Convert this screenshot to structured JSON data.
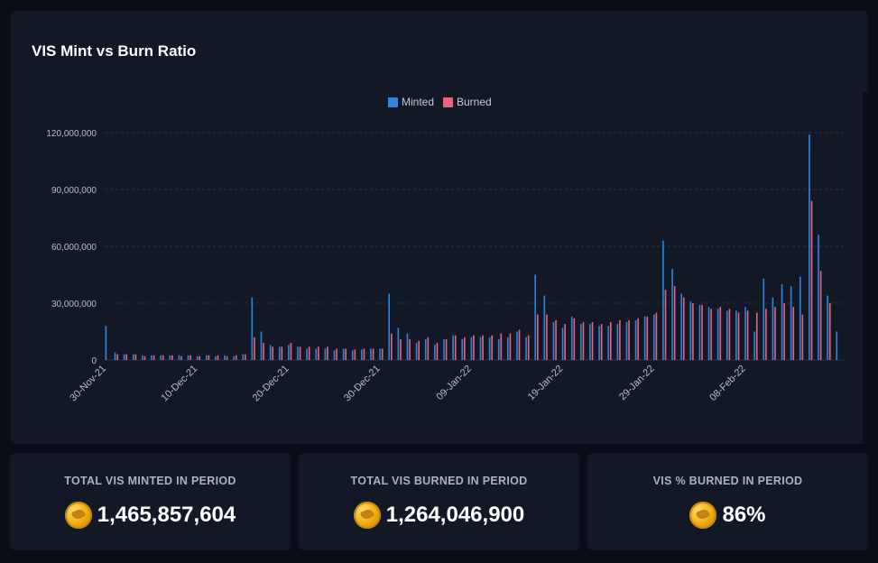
{
  "chart_card": {
    "title": "VIS Mint vs Burn Ratio"
  },
  "stats": [
    {
      "label": "TOTAL VIS MINTED IN PERIOD",
      "value": "1,465,857,604",
      "icon": "vis-coin-icon"
    },
    {
      "label": "TOTAL VIS BURNED IN PERIOD",
      "value": "1,264,046,900",
      "icon": "vis-coin-icon"
    },
    {
      "label": "VIS % BURNED IN PERIOD",
      "value": "86%",
      "icon": "vis-coin-icon"
    }
  ],
  "colors": {
    "minted": "#2e86de",
    "burned": "#f0637c",
    "grid": "#2a3142"
  },
  "chart_data": {
    "type": "bar",
    "title": "VIS Mint vs Burn Ratio",
    "legend": {
      "position": "top-center",
      "entries": [
        "Minted",
        "Burned"
      ]
    },
    "grid": "horizontal-dashed",
    "ylim": [
      0,
      120000000
    ],
    "yticks": [
      {
        "value": 0,
        "label": "0"
      },
      {
        "value": 30000000,
        "label": "30,000,000"
      },
      {
        "value": 60000000,
        "label": "60,000,000"
      },
      {
        "value": 90000000,
        "label": "90,000,000"
      },
      {
        "value": 120000000,
        "label": "120,000,000"
      }
    ],
    "x_tick_labels": [
      {
        "date": "2021-11-30",
        "label": "30-Nov-21"
      },
      {
        "date": "2021-12-10",
        "label": "10-Dec-21"
      },
      {
        "date": "2021-12-20",
        "label": "20-Dec-21"
      },
      {
        "date": "2021-12-30",
        "label": "30-Dec-21"
      },
      {
        "date": "2022-01-09",
        "label": "09-Jan-22"
      },
      {
        "date": "2022-01-19",
        "label": "19-Jan-22"
      },
      {
        "date": "2022-01-29",
        "label": "29-Jan-22"
      },
      {
        "date": "2022-02-08",
        "label": "08-Feb-22"
      }
    ],
    "categories": [
      "2021-11-30",
      "2021-12-01",
      "2021-12-02",
      "2021-12-03",
      "2021-12-04",
      "2021-12-05",
      "2021-12-06",
      "2021-12-07",
      "2021-12-08",
      "2021-12-09",
      "2021-12-10",
      "2021-12-11",
      "2021-12-12",
      "2021-12-13",
      "2021-12-14",
      "2021-12-15",
      "2021-12-16",
      "2021-12-17",
      "2021-12-18",
      "2021-12-19",
      "2021-12-20",
      "2021-12-21",
      "2021-12-22",
      "2021-12-23",
      "2021-12-24",
      "2021-12-25",
      "2021-12-26",
      "2021-12-27",
      "2021-12-28",
      "2021-12-29",
      "2021-12-30",
      "2021-12-31",
      "2022-01-01",
      "2022-01-02",
      "2022-01-03",
      "2022-01-04",
      "2022-01-05",
      "2022-01-06",
      "2022-01-07",
      "2022-01-08",
      "2022-01-09",
      "2022-01-10",
      "2022-01-11",
      "2022-01-12",
      "2022-01-13",
      "2022-01-14",
      "2022-01-15",
      "2022-01-16",
      "2022-01-17",
      "2022-01-18",
      "2022-01-19",
      "2022-01-20",
      "2022-01-21",
      "2022-01-22",
      "2022-01-23",
      "2022-01-24",
      "2022-01-25",
      "2022-01-26",
      "2022-01-27",
      "2022-01-28",
      "2022-01-29",
      "2022-01-30",
      "2022-01-31",
      "2022-02-01",
      "2022-02-02",
      "2022-02-03",
      "2022-02-04",
      "2022-02-05",
      "2022-02-06",
      "2022-02-07",
      "2022-02-08",
      "2022-02-09",
      "2022-02-10",
      "2022-02-11",
      "2022-02-12",
      "2022-02-13",
      "2022-02-14",
      "2022-02-15",
      "2022-02-16",
      "2022-02-17",
      "2022-02-18"
    ],
    "series": [
      {
        "name": "Minted",
        "color": "#2e86de",
        "values": [
          18000000,
          4000000,
          3000000,
          3000000,
          2500000,
          2500000,
          2500000,
          2500000,
          2500000,
          2500000,
          2000000,
          2500000,
          2000000,
          2500000,
          2000000,
          3000000,
          33000000,
          15000000,
          8000000,
          7000000,
          8000000,
          7000000,
          6000000,
          6000000,
          6000000,
          5000000,
          6000000,
          5000000,
          5500000,
          6000000,
          6000000,
          35000000,
          17000000,
          14000000,
          9000000,
          11000000,
          8000000,
          11000000,
          13000000,
          11000000,
          12000000,
          12000000,
          12000000,
          11000000,
          12000000,
          15000000,
          12000000,
          45000000,
          34000000,
          20000000,
          17000000,
          23000000,
          19000000,
          19000000,
          18000000,
          18000000,
          19000000,
          20000000,
          21000000,
          23000000,
          24000000,
          63000000,
          48000000,
          35000000,
          31000000,
          29000000,
          28000000,
          27000000,
          26000000,
          26000000,
          28000000,
          15000000,
          43000000,
          33000000,
          40000000,
          39000000,
          44000000,
          119000000,
          66000000,
          34000000,
          15000000
        ]
      },
      {
        "name": "Burned",
        "color": "#f0637c",
        "values": [
          0,
          3000000,
          3000000,
          3000000,
          2000000,
          2500000,
          2500000,
          2500000,
          2000000,
          2500000,
          2000000,
          2500000,
          2500000,
          2000000,
          2500000,
          3000000,
          12000000,
          9000000,
          7000000,
          7000000,
          9000000,
          7000000,
          7000000,
          7000000,
          7000000,
          6000000,
          6000000,
          5500000,
          6000000,
          6000000,
          6000000,
          14000000,
          11000000,
          11000000,
          10000000,
          12000000,
          9000000,
          11000000,
          13000000,
          12000000,
          13000000,
          13000000,
          13000000,
          14000000,
          14000000,
          16000000,
          13000000,
          24000000,
          24000000,
          21000000,
          19000000,
          22000000,
          20000000,
          20000000,
          19000000,
          20000000,
          21000000,
          21000000,
          22000000,
          23000000,
          25000000,
          37000000,
          39000000,
          33000000,
          30000000,
          29000000,
          27000000,
          28000000,
          27000000,
          25000000,
          26000000,
          25000000,
          27000000,
          28000000,
          30000000,
          28000000,
          24000000,
          84000000,
          47000000,
          30000000,
          0
        ]
      }
    ]
  }
}
